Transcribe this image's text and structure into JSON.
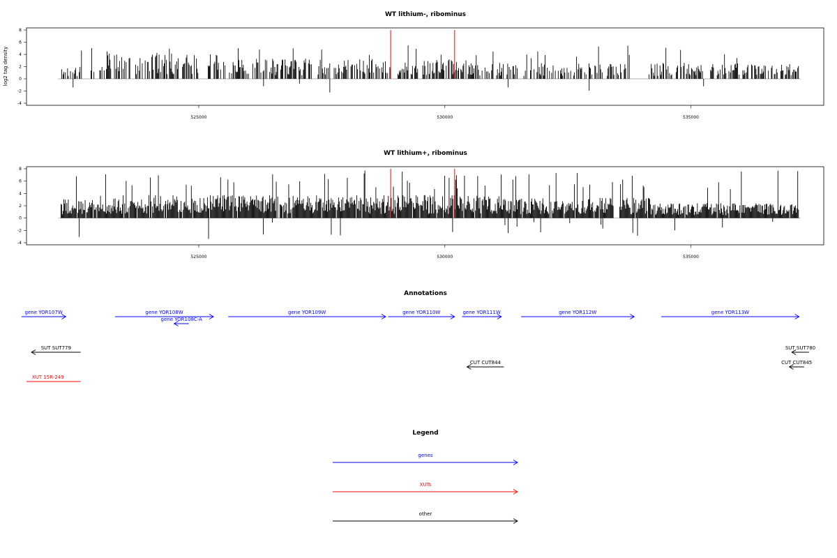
{
  "chart_data": [
    {
      "type": "bar",
      "title": "WT lithium-, ribominus",
      "ylabel": "log2 tag density",
      "xlabel": "",
      "xlim": [
        521500,
        537700
      ],
      "ylim": [
        -4,
        8
      ],
      "yticks": [
        "-4",
        "-2",
        "0",
        "2",
        "4",
        "6",
        "8"
      ],
      "xticks": [
        "525000",
        "530000",
        "535000"
      ],
      "x_range": [
        522200,
        537200
      ],
      "highlight_x": [
        528900,
        530200
      ],
      "series": [
        {
          "density": 0.55,
          "max": 5.5,
          "neg_max": 3.2
        }
      ]
    },
    {
      "type": "bar",
      "title": "WT lithium+, ribominus",
      "ylabel": "",
      "xlabel": "",
      "xlim": [
        521500,
        537700
      ],
      "ylim": [
        -4,
        8
      ],
      "yticks": [
        "-4",
        "-2",
        "0",
        "2",
        "4",
        "6",
        "8"
      ],
      "xticks": [
        "525000",
        "530000",
        "535000"
      ],
      "x_range": [
        522200,
        537200
      ],
      "highlight_x": [
        528900,
        530200
      ],
      "series": [
        {
          "density": 0.95,
          "max": 7.8,
          "neg_max": 3.6
        }
      ]
    }
  ],
  "annotations": {
    "title": "Annotations",
    "genes": [
      {
        "label": "gene YOR107W",
        "start": 521400,
        "end": 522300,
        "strand": "+",
        "row": 0
      },
      {
        "label": "gene YOR108W",
        "start": 523300,
        "end": 525300,
        "strand": "+",
        "row": 0
      },
      {
        "label": "gene YOR108C-A",
        "start": 524500,
        "end": 524800,
        "strand": "-",
        "row": 1
      },
      {
        "label": "gene YOR109W",
        "start": 525600,
        "end": 528800,
        "strand": "+",
        "row": 0
      },
      {
        "label": "gene YOR110W",
        "start": 528850,
        "end": 530200,
        "strand": "+",
        "row": 0
      },
      {
        "label": "gene YOR111W",
        "start": 530350,
        "end": 531150,
        "strand": "+",
        "row": 0
      },
      {
        "label": "gene YOR112W",
        "start": 531550,
        "end": 533850,
        "strand": "+",
        "row": 0
      },
      {
        "label": "gene YOR113W",
        "start": 534400,
        "end": 537200,
        "strand": "+",
        "row": 0
      }
    ],
    "other": [
      {
        "label": "SUT SUT779",
        "start": 521600,
        "end": 522600,
        "strand": "-",
        "row": 0
      },
      {
        "label": "SUT SUT780",
        "start": 537050,
        "end": 537400,
        "strand": "-",
        "row": 0
      },
      {
        "label": "CUT CUT844",
        "start": 530450,
        "end": 531200,
        "strand": "-",
        "row": 1
      },
      {
        "label": "CUT CUT845",
        "start": 537000,
        "end": 537300,
        "strand": "-",
        "row": 1
      }
    ],
    "xuts": [
      {
        "label": "XUT 15R-249",
        "start": 521500,
        "end": 522600
      }
    ]
  },
  "legend": {
    "title": "Legend",
    "items": [
      {
        "label": "genes",
        "color": "#0000ff"
      },
      {
        "label": "XUTs",
        "color": "#ff0000"
      },
      {
        "label": "other",
        "color": "#000000"
      }
    ]
  },
  "colors": {
    "gene": "#0000ff",
    "xut": "#ff0000",
    "other": "#000000",
    "bar": "#000000",
    "highlight": "#ff0000",
    "zero": "#999999"
  }
}
